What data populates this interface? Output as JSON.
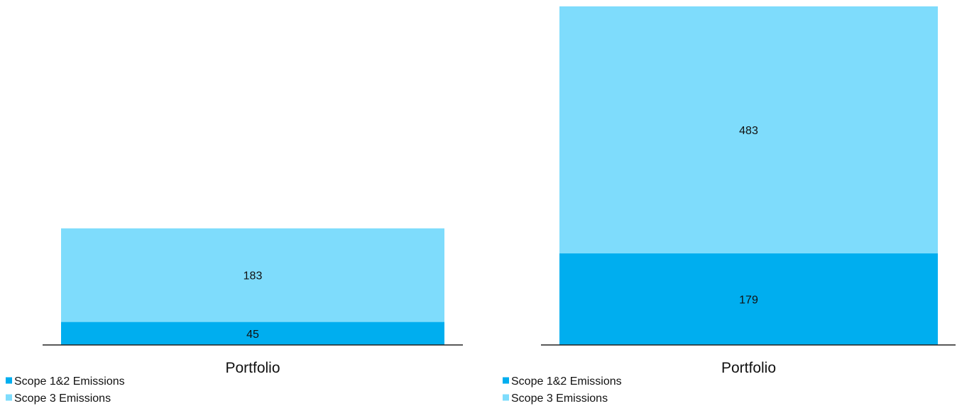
{
  "colors": {
    "scope12": "#00AEEF",
    "scope3": "#7EDCFC",
    "axis": "#222222"
  },
  "chart_data": [
    {
      "type": "bar",
      "stacked": true,
      "categories": [
        "Portfolio"
      ],
      "series": [
        {
          "name": "Scope 1&2 Emissions",
          "values": [
            45
          ]
        },
        {
          "name": "Scope 3 Emissions",
          "values": [
            183
          ]
        }
      ],
      "data_labels": true,
      "ylim": [
        0,
        662
      ],
      "legend_placement": "bottom-left",
      "grid": false
    },
    {
      "type": "bar",
      "stacked": true,
      "categories": [
        "Portfolio"
      ],
      "series": [
        {
          "name": "Scope 1&2 Emissions",
          "values": [
            179
          ]
        },
        {
          "name": "Scope 3 Emissions",
          "values": [
            483
          ]
        }
      ],
      "data_labels": true,
      "ylim": [
        0,
        662
      ],
      "legend_placement": "bottom-left",
      "grid": false
    }
  ]
}
